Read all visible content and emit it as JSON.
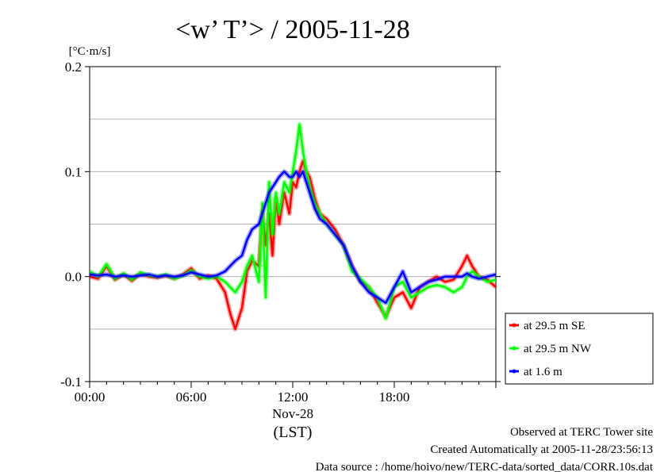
{
  "chart_data": {
    "type": "line",
    "title": "<w’ T’> / 2005-11-28",
    "ylabel": "[°C·m/s]",
    "y_ticks": [
      "0.2",
      "0.1",
      "0.0",
      "-0.1"
    ],
    "ylim": [
      -0.1,
      0.2
    ],
    "x_ticks": [
      "00:00",
      "06:00",
      "12:00",
      "18:00"
    ],
    "x_date_label": "Nov-28",
    "x_unit_label": "(LST)",
    "xlim_hours": [
      0,
      24
    ],
    "grid": "horizontal",
    "legend_position": "right",
    "series": [
      {
        "name": "at 29.5 m SE",
        "color": "#ff0000",
        "x": [
          0,
          0.5,
          1,
          1.5,
          2,
          2.5,
          3,
          3.5,
          4,
          4.5,
          5,
          5.5,
          6,
          6.5,
          7,
          7.5,
          8,
          8.3,
          8.6,
          9,
          9.3,
          9.6,
          10,
          10.2,
          10.4,
          10.6,
          10.8,
          11,
          11.2,
          11.5,
          11.8,
          12,
          12.2,
          12.4,
          12.6,
          12.8,
          13,
          13.3,
          13.6,
          14,
          14.5,
          15,
          15.5,
          16,
          16.5,
          17,
          17.5,
          18,
          18.5,
          19,
          19.5,
          20,
          20.5,
          21,
          21.5,
          22,
          22.3,
          22.6,
          23,
          23.5,
          24
        ],
        "y": [
          0,
          -0.002,
          0.01,
          -0.003,
          0.002,
          -0.004,
          0.003,
          0,
          -0.001,
          0.001,
          -0.002,
          0.002,
          0.008,
          -0.002,
          0.001,
          -0.002,
          -0.015,
          -0.035,
          -0.05,
          -0.03,
          0.005,
          0.015,
          0.01,
          0.06,
          0.03,
          0.06,
          0.02,
          0.075,
          0.05,
          0.08,
          0.06,
          0.09,
          0.085,
          0.1,
          0.11,
          0.1,
          0.095,
          0.075,
          0.06,
          0.055,
          0.045,
          0.03,
          0.01,
          -0.005,
          -0.01,
          -0.025,
          -0.038,
          -0.02,
          -0.015,
          -0.03,
          -0.01,
          -0.005,
          0,
          -0.005,
          -0.003,
          0.01,
          0.02,
          0.01,
          0,
          -0.003,
          -0.01
        ]
      },
      {
        "name": "at 29.5 m NW",
        "color": "#00ff00",
        "x": [
          0,
          0.5,
          1,
          1.5,
          2,
          2.5,
          3,
          3.5,
          4,
          4.5,
          5,
          5.5,
          6,
          6.5,
          7,
          7.5,
          8,
          8.3,
          8.6,
          9,
          9.3,
          9.6,
          10,
          10.2,
          10.4,
          10.6,
          10.8,
          11,
          11.2,
          11.5,
          11.8,
          12,
          12.2,
          12.4,
          12.6,
          12.8,
          13,
          13.3,
          13.6,
          14,
          14.5,
          15,
          15.5,
          16,
          16.5,
          17,
          17.5,
          18,
          18.5,
          19,
          19.5,
          20,
          20.5,
          21,
          21.5,
          22,
          22.3,
          22.6,
          23,
          23.5,
          24
        ],
        "y": [
          0.005,
          0,
          0.012,
          -0.002,
          0.003,
          -0.003,
          0.004,
          0.001,
          0,
          0.002,
          -0.002,
          0.001,
          0.006,
          0,
          -0.002,
          0,
          -0.005,
          -0.01,
          -0.015,
          -0.005,
          0.01,
          0.02,
          -0.005,
          0.07,
          -0.02,
          0.09,
          0.04,
          0.08,
          0.06,
          0.09,
          0.08,
          0.1,
          0.12,
          0.145,
          0.12,
          0.1,
          0.085,
          0.07,
          0.06,
          0.05,
          0.04,
          0.03,
          0.005,
          -0.002,
          -0.01,
          -0.02,
          -0.04,
          -0.01,
          -0.005,
          -0.02,
          -0.015,
          -0.01,
          -0.008,
          -0.01,
          -0.015,
          -0.01,
          0,
          0.005,
          0,
          -0.005,
          -0.003
        ]
      },
      {
        "name": "at 1.6 m",
        "color": "#0000ff",
        "x": [
          0,
          0.5,
          1,
          1.5,
          2,
          2.5,
          3,
          3.5,
          4,
          4.5,
          5,
          5.5,
          6,
          6.5,
          7,
          7.5,
          8,
          8.3,
          8.6,
          9,
          9.3,
          9.6,
          10,
          10.2,
          10.4,
          10.6,
          10.8,
          11,
          11.2,
          11.5,
          11.8,
          12,
          12.2,
          12.4,
          12.6,
          12.8,
          13,
          13.3,
          13.6,
          14,
          14.5,
          15,
          15.5,
          16,
          16.5,
          17,
          17.5,
          18,
          18.5,
          19,
          19.5,
          20,
          20.5,
          21,
          21.5,
          22,
          22.3,
          22.6,
          23,
          23.5,
          24
        ],
        "y": [
          0.002,
          0.001,
          0.002,
          0,
          0.001,
          0,
          0.001,
          0.002,
          0,
          0.001,
          0,
          0.001,
          0.004,
          0.002,
          0,
          0.001,
          0.005,
          0.01,
          0.015,
          0.02,
          0.035,
          0.045,
          0.05,
          0.06,
          0.07,
          0.08,
          0.085,
          0.09,
          0.095,
          0.1,
          0.095,
          0.095,
          0.1,
          0.095,
          0.1,
          0.09,
          0.08,
          0.065,
          0.055,
          0.05,
          0.04,
          0.03,
          0.01,
          -0.005,
          -0.015,
          -0.02,
          -0.025,
          -0.01,
          0.005,
          -0.015,
          -0.01,
          -0.005,
          -0.003,
          0,
          0,
          0,
          0.003,
          0,
          -0.002,
          0,
          0.002
        ]
      }
    ]
  },
  "footer": {
    "line1": "Observed at TERC Tower site",
    "line2": "Created Automatically at 2005-11-28/23:56:13",
    "line3": "Data source : /home/hoivo/new/TERC-data/sorted_data/CORR.10s.dat"
  }
}
